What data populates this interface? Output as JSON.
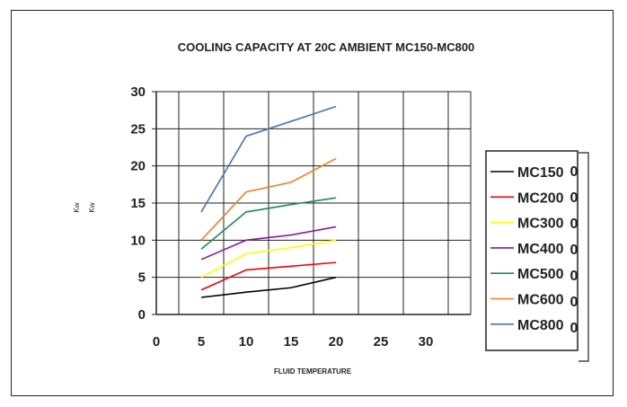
{
  "chart_data": {
    "type": "line",
    "title": "COOLING CAPACITY AT 20C AMBIENT MC150-MC800",
    "xlabel": "FLUID TEMPERATURE",
    "ylabel_lines": [
      "Kw",
      "Kw"
    ],
    "x_ticks": [
      "0",
      "5",
      "10",
      "15",
      "20",
      "25",
      "30"
    ],
    "y_ticks": [
      "0",
      "5",
      "10",
      "15",
      "20",
      "25",
      "30"
    ],
    "ylim": [
      0,
      30
    ],
    "grid": true,
    "legend_position": "right",
    "categories": [
      5,
      10,
      15,
      20
    ],
    "series": [
      {
        "name": "MC150",
        "color": "#000000",
        "values": [
          2.3,
          3.0,
          3.6,
          5.0
        ]
      },
      {
        "name": "MC200",
        "color": "#ff0000",
        "values": [
          3.3,
          6.0,
          6.5,
          7.0
        ]
      },
      {
        "name": "MC300",
        "color": "#ffff00",
        "values": [
          5.0,
          8.2,
          9.0,
          10.0
        ]
      },
      {
        "name": "MC400",
        "color": "#8a1a9b",
        "values": [
          7.4,
          10.0,
          10.7,
          11.8
        ]
      },
      {
        "name": "MC500",
        "color": "#19904f",
        "values": [
          8.8,
          13.8,
          14.8,
          15.7
        ]
      },
      {
        "name": "MC600",
        "color": "#ff7c1f",
        "values": [
          10.0,
          16.5,
          17.8,
          21.0
        ]
      },
      {
        "name": "MC800",
        "color": "#4472c4",
        "values": [
          13.8,
          24.0,
          26.0,
          28.0
        ]
      }
    ],
    "side_box_values": [
      "0",
      "0",
      "0",
      "0",
      "0",
      "0",
      "0"
    ]
  }
}
